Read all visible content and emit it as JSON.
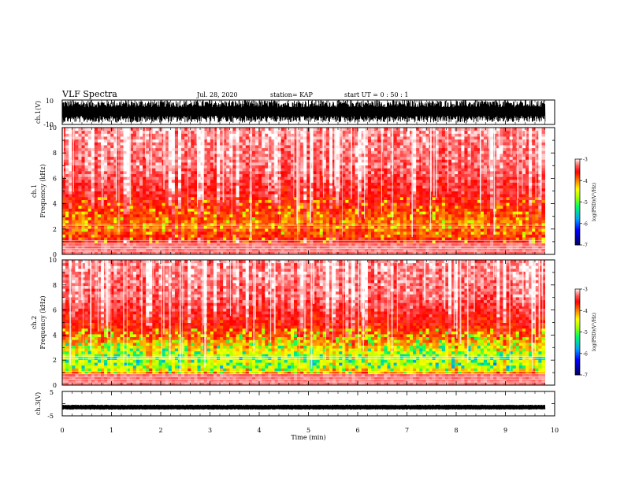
{
  "header": {
    "title": "VLF Spectra",
    "date": "Jul. 28, 2020",
    "station": "station= KAP",
    "start": "start UT =  0 : 50 : 1"
  },
  "colors": {
    "waveform": "#000000",
    "colormap": [
      "#000060",
      "#0000ff",
      "#00a0ff",
      "#00ff60",
      "#a0ff00",
      "#ffff00",
      "#ff8000",
      "#ff0000",
      "#ff6060",
      "#ffc0c0",
      "#ffffff"
    ]
  },
  "chart_data": [
    {
      "type": "line",
      "name": "ch1-waveform",
      "ylabel": "ch.1(V)",
      "ylim": [
        -10,
        10
      ],
      "yticks": [
        "10",
        "-10"
      ],
      "xlim": [
        0,
        10
      ],
      "description_values": "saturated waveform oscillating between about -8 V and +10 V over 0–9.8 min"
    },
    {
      "type": "heatmap",
      "name": "ch1-spectrogram",
      "ylabel": "ch.1\nFrequency (kHz)",
      "ylim": [
        0,
        10
      ],
      "yticks": [
        "0",
        "2",
        "4",
        "6",
        "8",
        "10"
      ],
      "xlim": [
        0,
        10
      ],
      "data_end_min": 9.8,
      "colorbar": {
        "label": "log(PSD)(V²/Hz)",
        "range": [
          -7,
          -3
        ],
        "ticks": [
          "-3",
          "-4",
          "-5",
          "-6",
          "-7"
        ]
      },
      "levels_by_freq_khz": [
        [
          0.5,
          -3.3
        ],
        [
          1.5,
          -3.8
        ],
        [
          2.5,
          -4.0
        ],
        [
          4,
          -3.6
        ],
        [
          7,
          -3.3
        ],
        [
          10,
          -3.2
        ]
      ]
    },
    {
      "type": "heatmap",
      "name": "ch2-spectrogram",
      "ylabel": "ch.2\nFrequency (kHz)",
      "ylim": [
        0,
        10
      ],
      "yticks": [
        "0",
        "2",
        "4",
        "6",
        "8",
        "10"
      ],
      "xlim": [
        0,
        10
      ],
      "data_end_min": 9.8,
      "colorbar": {
        "label": "log(PSD)(V²/Hz)",
        "range": [
          -7,
          -3
        ],
        "ticks": [
          "-3",
          "-4",
          "-5",
          "-6",
          "-7"
        ]
      },
      "levels_by_freq_khz": [
        [
          0.5,
          -3.4
        ],
        [
          1.5,
          -4.6
        ],
        [
          2.5,
          -4.5
        ],
        [
          4,
          -3.8
        ],
        [
          7,
          -3.3
        ],
        [
          10,
          -3.2
        ]
      ]
    },
    {
      "type": "line",
      "name": "ch3-waveform",
      "ylabel": "ch.3(V)",
      "ylim": [
        -5,
        5
      ],
      "yticks": [
        "5",
        "-5"
      ],
      "value": -1.5,
      "xlim": [
        0,
        10
      ],
      "xlabel": "Time (min)",
      "xticks": [
        "0",
        "1",
        "2",
        "3",
        "4",
        "5",
        "6",
        "7",
        "8",
        "9",
        "10"
      ]
    }
  ]
}
